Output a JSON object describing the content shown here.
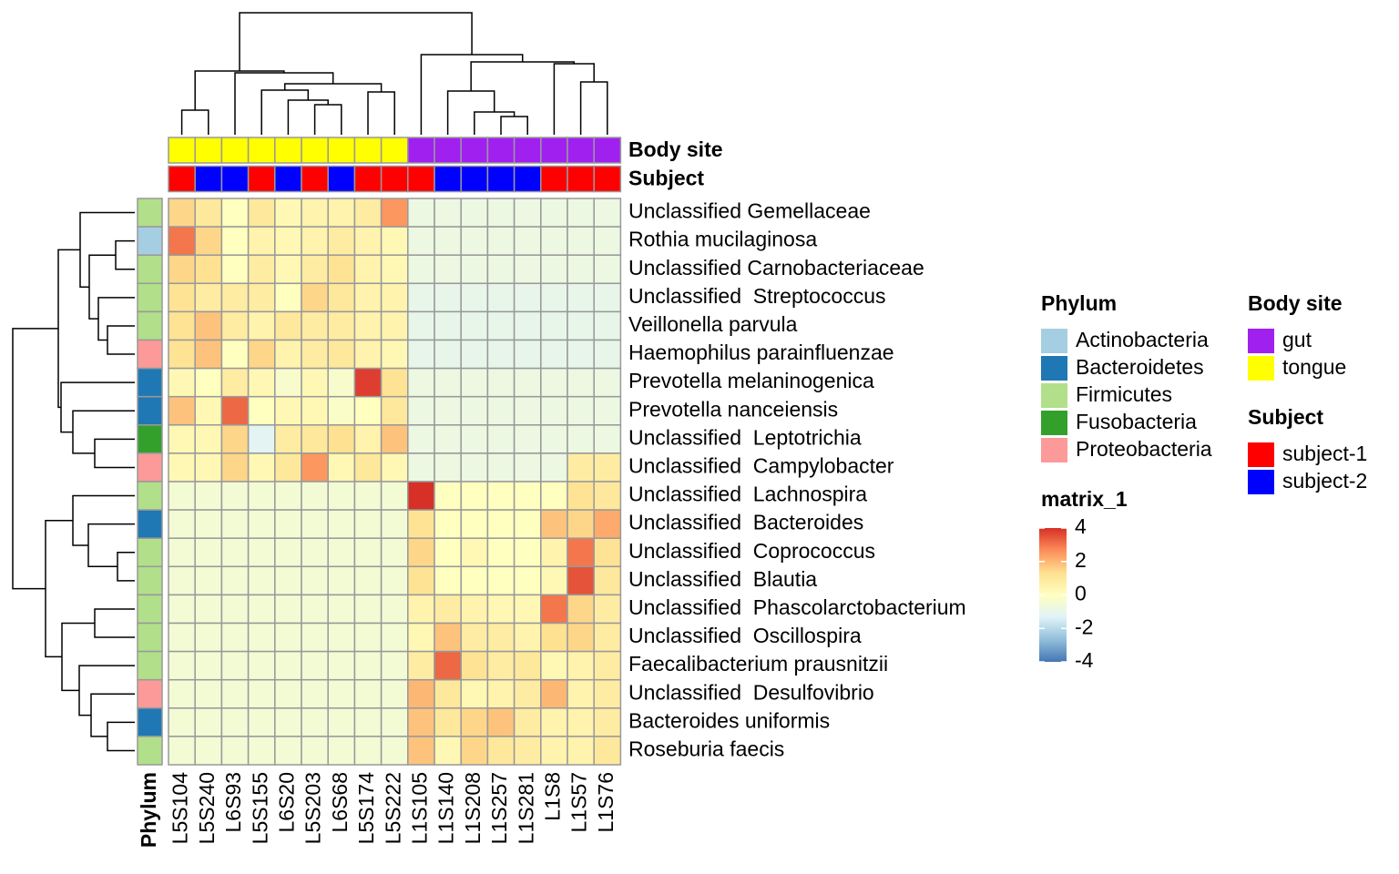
{
  "chart_data": {
    "type": "heatmap",
    "rows": [
      "Unclassified Gemellaceae",
      "Rothia mucilaginosa",
      "Unclassified Carnobacteriaceae",
      "Unclassified  Streptococcus",
      "Veillonella parvula",
      "Haemophilus parainfluenzae",
      "Prevotella melaninogenica",
      "Prevotella nanceiensis",
      "Unclassified  Leptotrichia",
      "Unclassified  Campylobacter",
      "Unclassified  Lachnospira",
      "Unclassified  Bacteroides",
      "Unclassified  Coprococcus",
      "Unclassified  Blautia",
      "Unclassified  Phascolarctobacterium",
      "Unclassified  Oscillospira",
      "Faecalibacterium prausnitzii",
      "Unclassified  Desulfovibrio",
      "Bacteroides uniformis",
      "Roseburia faecis"
    ],
    "columns": [
      "L5S104",
      "L5S240",
      "L6S93",
      "L5S155",
      "L6S20",
      "L5S203",
      "L6S68",
      "L5S174",
      "L5S222",
      "L1S105",
      "L1S140",
      "L1S208",
      "L1S257",
      "L1S281",
      "L1S8",
      "L1S57",
      "L1S76"
    ],
    "values": [
      [
        1.5,
        1,
        0,
        1,
        0.3,
        0.5,
        0.5,
        0.8,
        2.5,
        -0.8,
        -0.8,
        -0.8,
        -0.8,
        -0.8,
        -0.8,
        -0.8,
        -0.8
      ],
      [
        3,
        1.5,
        0,
        0.5,
        0.3,
        0.5,
        0.8,
        0.5,
        0.3,
        -0.8,
        -0.8,
        -0.8,
        -0.8,
        -0.8,
        -0.8,
        -0.8,
        -0.8
      ],
      [
        1.5,
        1.3,
        0,
        0.8,
        0.3,
        0.8,
        1.2,
        0.5,
        0.3,
        -0.8,
        -0.8,
        -0.8,
        -0.8,
        -0.8,
        -0.8,
        -0.8,
        -0.8
      ],
      [
        1.2,
        0.8,
        0.8,
        0.8,
        0,
        1.5,
        1,
        0.5,
        0.5,
        -1,
        -1,
        -1,
        -1,
        -1,
        -1,
        -1,
        -1
      ],
      [
        1.2,
        1.8,
        0.8,
        0.5,
        1,
        0.8,
        0.8,
        0.5,
        0.5,
        -1,
        -1,
        -1,
        -1,
        -1,
        -1,
        -1,
        -1
      ],
      [
        1.2,
        1.8,
        0,
        1.5,
        0.5,
        0.8,
        1,
        0.5,
        0.3,
        -1,
        -1,
        -1,
        -1,
        -1,
        -1,
        -1,
        -1
      ],
      [
        0.3,
        0,
        0.8,
        0.3,
        -0.3,
        0.3,
        -0.3,
        3.8,
        1.2,
        -0.8,
        -0.8,
        -0.8,
        -0.8,
        -0.8,
        -0.8,
        -0.8,
        -0.8
      ],
      [
        1.8,
        0.3,
        3.2,
        0,
        0.3,
        0.3,
        -0.2,
        0,
        1,
        -0.8,
        -0.8,
        -0.8,
        -0.8,
        -0.8,
        -0.8,
        -0.8,
        -0.8
      ],
      [
        0.3,
        0.3,
        1.5,
        -1.2,
        0.8,
        1,
        1.3,
        0.5,
        1.8,
        -0.8,
        -0.8,
        -0.8,
        -0.8,
        -0.8,
        -0.8,
        -0.8,
        -0.8
      ],
      [
        0.3,
        0.3,
        1.5,
        0.3,
        1,
        2.5,
        0.3,
        1,
        0.3,
        -0.8,
        -0.8,
        -0.8,
        -0.8,
        -0.8,
        -0.8,
        0.8,
        0.8
      ],
      [
        -0.5,
        -0.5,
        -0.5,
        -0.5,
        -0.5,
        -0.5,
        -0.5,
        -0.5,
        -0.5,
        4,
        0,
        0,
        0,
        0,
        0,
        1.2,
        1
      ],
      [
        -0.5,
        -0.5,
        -0.5,
        -0.5,
        -0.5,
        -0.5,
        -0.5,
        -0.5,
        -0.5,
        1.2,
        0,
        0,
        0,
        0,
        1.8,
        1.5,
        2.2
      ],
      [
        -0.5,
        -0.5,
        -0.5,
        -0.5,
        -0.5,
        -0.5,
        -0.5,
        -0.5,
        -0.5,
        1.5,
        0,
        0.3,
        0,
        0,
        0.5,
        3,
        1.2
      ],
      [
        -0.5,
        -0.5,
        -0.5,
        -0.5,
        -0.5,
        -0.5,
        -0.5,
        -0.5,
        -0.5,
        1.2,
        0,
        0,
        0,
        0,
        0.3,
        3.5,
        1
      ],
      [
        -0.5,
        -0.5,
        -0.5,
        -0.5,
        -0.5,
        -0.5,
        -0.5,
        -0.5,
        -0.5,
        0.5,
        0.8,
        0.5,
        0.3,
        0.3,
        3,
        1.5,
        0.8
      ],
      [
        -0.5,
        -0.5,
        -0.5,
        -0.5,
        -0.5,
        -0.5,
        -0.5,
        -0.5,
        -0.5,
        0.3,
        1.8,
        0.8,
        0.8,
        0.5,
        1.3,
        1.5,
        0.8
      ],
      [
        -0.5,
        -0.5,
        -0.5,
        -0.5,
        -0.5,
        -0.5,
        -0.5,
        -0.5,
        -0.5,
        0.8,
        3.2,
        1.2,
        0.8,
        1,
        0.3,
        0.5,
        0.8
      ],
      [
        -0.5,
        -0.5,
        -0.5,
        -0.5,
        -0.5,
        -0.5,
        -0.5,
        -0.5,
        -0.5,
        2,
        1,
        0.3,
        0.5,
        0.8,
        2,
        0.5,
        0.8
      ],
      [
        -0.5,
        -0.5,
        -0.5,
        -0.5,
        -0.5,
        -0.5,
        -0.5,
        -0.5,
        -0.5,
        1.8,
        1,
        1.5,
        1.8,
        0.8,
        0.5,
        0.5,
        0.8
      ],
      [
        -0.5,
        -0.5,
        -0.5,
        -0.5,
        -0.5,
        -0.5,
        -0.5,
        -0.5,
        -0.5,
        1.8,
        0.3,
        1.5,
        1,
        0.8,
        0.5,
        0.5,
        1
      ]
    ],
    "color_scale": {
      "title": "matrix_1",
      "clim": [
        -4,
        4
      ],
      "ticks": [
        -4,
        -2,
        0,
        2,
        4
      ],
      "colors": [
        "#4575b4",
        "#91bfdb",
        "#e0f3f8",
        "#ffffbf",
        "#fee090",
        "#fc8d59",
        "#d73027"
      ]
    },
    "column_annotations": [
      {
        "name": "Body site",
        "categories": [
          "gut",
          "tongue"
        ],
        "colors": [
          "#a020f0",
          "#ffff00"
        ],
        "values": [
          "tongue",
          "tongue",
          "tongue",
          "tongue",
          "tongue",
          "tongue",
          "tongue",
          "tongue",
          "tongue",
          "gut",
          "gut",
          "gut",
          "gut",
          "gut",
          "gut",
          "gut",
          "gut"
        ]
      },
      {
        "name": "Subject",
        "categories": [
          "subject-1",
          "subject-2"
        ],
        "colors": [
          "#ff0000",
          "#0000ff"
        ],
        "values": [
          "subject-1",
          "subject-2",
          "subject-2",
          "subject-1",
          "subject-2",
          "subject-1",
          "subject-2",
          "subject-1",
          "subject-1",
          "subject-1",
          "subject-2",
          "subject-2",
          "subject-2",
          "subject-2",
          "subject-1",
          "subject-1",
          "subject-1"
        ]
      }
    ],
    "row_annotations": [
      {
        "name": "Phylum",
        "categories": [
          "Actinobacteria",
          "Bacteroidetes",
          "Firmicutes",
          "Fusobacteria",
          "Proteobacteria"
        ],
        "colors": [
          "#a6cee3",
          "#1f78b4",
          "#b2df8a",
          "#33a02c",
          "#fb9a99"
        ],
        "values": [
          "Firmicutes",
          "Actinobacteria",
          "Firmicutes",
          "Firmicutes",
          "Firmicutes",
          "Proteobacteria",
          "Bacteroidetes",
          "Bacteroidetes",
          "Fusobacteria",
          "Proteobacteria",
          "Firmicutes",
          "Bacteroidetes",
          "Firmicutes",
          "Firmicutes",
          "Firmicutes",
          "Firmicutes",
          "Firmicutes",
          "Proteobacteria",
          "Bacteroidetes",
          "Firmicutes"
        ]
      }
    ]
  }
}
